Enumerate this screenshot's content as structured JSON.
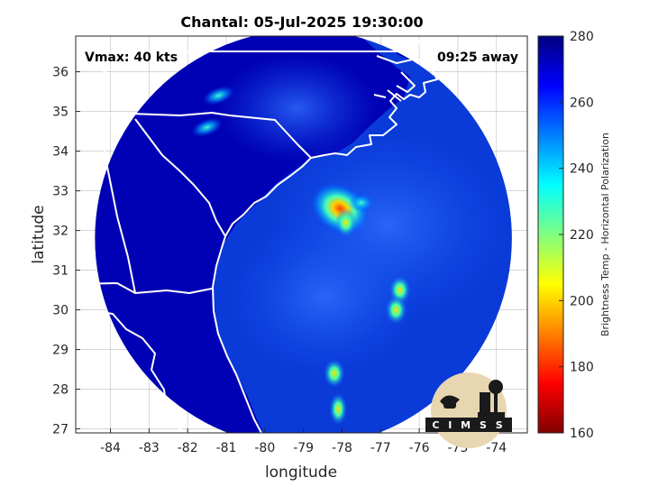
{
  "figure": {
    "title": "Chantal: 05-Jul-2025 19:30:00",
    "vmax_label": "Vmax: 40 kts",
    "away_label": "09:25 away",
    "logo_text": "C I M S S"
  },
  "chart_data": {
    "type": "heatmap",
    "title": "Chantal: 05-Jul-2025 19:30:00",
    "xlabel": "longitude",
    "ylabel": "latitude",
    "xlim": [
      -84.9,
      -73.2
    ],
    "ylim": [
      26.9,
      36.9
    ],
    "xticks": [
      -84,
      -83,
      -82,
      -81,
      -80,
      -79,
      -78,
      -77,
      -76,
      -75,
      -74
    ],
    "yticks": [
      27,
      28,
      29,
      30,
      31,
      32,
      33,
      34,
      35,
      36
    ],
    "grid": true,
    "colorbar": {
      "label": "Brightness Temp - Horizontal Polarization",
      "range": [
        160,
        280
      ],
      "ticks": [
        160,
        180,
        200,
        220,
        240,
        260,
        280
      ],
      "colormap": "jet"
    },
    "swath": {
      "center": [
        -79.0,
        31.8
      ],
      "radius_deg": 5.4
    },
    "storm_center": [
      -78.05,
      32.55
    ],
    "min_brightness_temp": 195,
    "features": [
      {
        "name": "storm core",
        "lon": -78.05,
        "lat": 32.55,
        "temp": 195
      },
      {
        "name": "rainband",
        "lon": -77.9,
        "lat": 32.2,
        "temp": 225
      },
      {
        "name": "rainband",
        "lon": -77.5,
        "lat": 32.7,
        "temp": 238
      },
      {
        "name": "rainband",
        "lon": -76.5,
        "lat": 30.5,
        "temp": 218
      },
      {
        "name": "rainband",
        "lon": -76.6,
        "lat": 30.0,
        "temp": 215
      },
      {
        "name": "rainband",
        "lon": -78.2,
        "lat": 28.4,
        "temp": 222
      },
      {
        "name": "rainband",
        "lon": -78.1,
        "lat": 27.5,
        "temp": 195
      },
      {
        "name": "convection",
        "lon": -81.2,
        "lat": 35.4,
        "temp": 240
      },
      {
        "name": "convection",
        "lon": -81.5,
        "lat": 34.6,
        "temp": 238
      }
    ]
  },
  "colors": {
    "background_ocean": "#0a3ad8",
    "land": "#0000a8",
    "coastline": "#ffffff",
    "grid": "#c8c8c8"
  }
}
